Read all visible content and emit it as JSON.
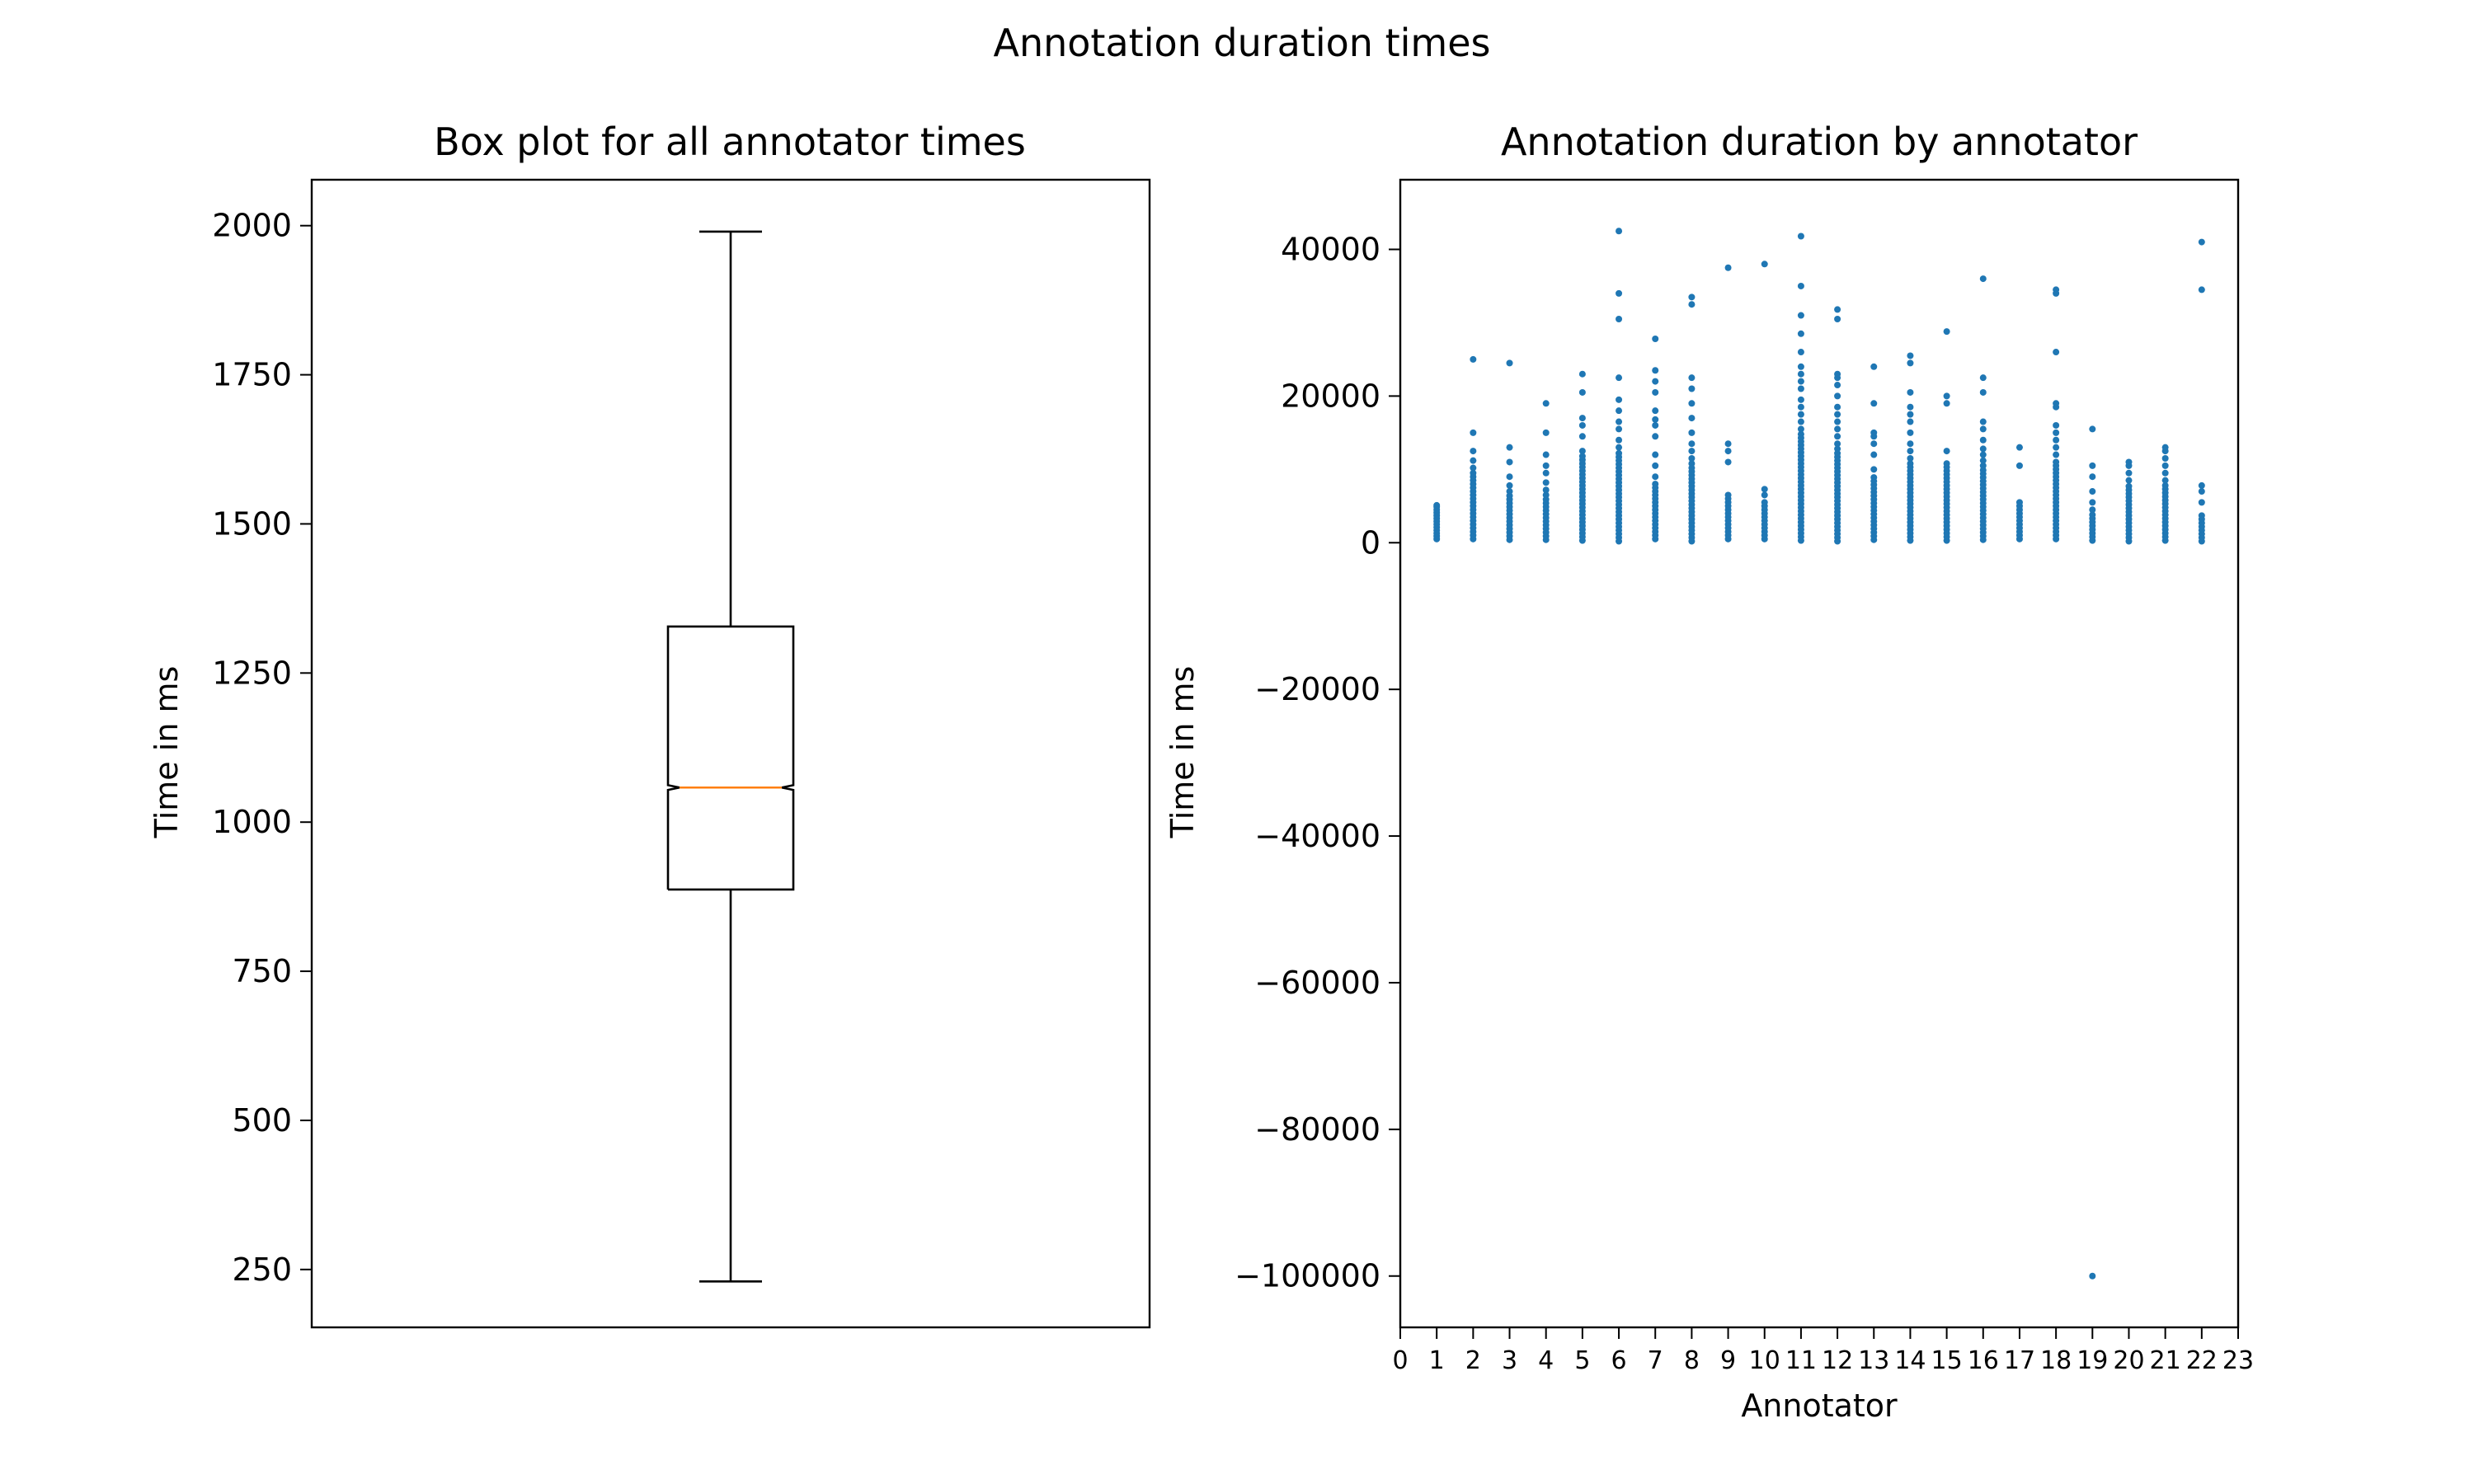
{
  "figure": {
    "suptitle": "Annotation duration times"
  },
  "colors": {
    "box": "#000000",
    "median": "#ff7f0e",
    "points": "#1f77b4"
  },
  "chart_data": [
    {
      "type": "box",
      "title": "Box plot for all annotator times",
      "xlabel": "",
      "ylabel": "Time in ms",
      "ylim": [
        153,
        2077
      ],
      "yticks": [
        250,
        500,
        750,
        1000,
        1250,
        1500,
        1750,
        2000
      ],
      "grid": false,
      "notched": true,
      "stats": {
        "whisker_low": 230,
        "q1": 887,
        "median": 1058,
        "q3": 1328,
        "whisker_high": 1990,
        "notch_low": 1054,
        "notch_high": 1062
      }
    },
    {
      "type": "scatter",
      "title": "Annotation duration by annotator",
      "xlabel": "Annotator",
      "ylabel": "Time in ms",
      "xlim": [
        0,
        23
      ],
      "ylim": [
        -107000,
        49500
      ],
      "xticks": [
        0,
        1,
        2,
        3,
        4,
        5,
        6,
        7,
        8,
        9,
        10,
        11,
        12,
        13,
        14,
        15,
        16,
        17,
        18,
        19,
        20,
        21,
        22,
        23
      ],
      "yticks": [
        -100000,
        -80000,
        -60000,
        -40000,
        -20000,
        0,
        20000,
        40000
      ],
      "grid": false,
      "series": [
        {
          "points": [
            {
              "x": 1,
              "y": [
                500,
                900,
                1300,
                1700,
                2100,
                2500,
                2900,
                3300,
                3700,
                4100,
                4500,
                4900,
                5100
              ]
            },
            {
              "x": 2,
              "y": [
                500,
                1000,
                1500,
                2000,
                2500,
                3000,
                3500,
                4000,
                4500,
                5000,
                5500,
                6000,
                6500,
                7000,
                7500,
                8000,
                8500,
                9000,
                9500,
                10200,
                11200,
                12500,
                15000,
                25000
              ]
            },
            {
              "x": 3,
              "y": [
                400,
                900,
                1400,
                1900,
                2400,
                2900,
                3400,
                3900,
                4400,
                4900,
                5400,
                5900,
                6400,
                7000,
                7800,
                9000,
                11000,
                13000,
                24500
              ]
            },
            {
              "x": 4,
              "y": [
                400,
                900,
                1400,
                1900,
                2400,
                2900,
                3400,
                3900,
                4400,
                4900,
                5400,
                5900,
                6500,
                7200,
                8200,
                9500,
                10500,
                12000,
                15000,
                19000
              ]
            },
            {
              "x": 5,
              "y": [
                300,
                800,
                1300,
                1800,
                2300,
                2800,
                3300,
                3800,
                4300,
                4800,
                5300,
                5800,
                6300,
                6800,
                7300,
                7800,
                8300,
                8800,
                9300,
                9800,
                10300,
                10800,
                11300,
                11800,
                12500,
                14500,
                16000,
                17000,
                20500,
                23000
              ]
            },
            {
              "x": 6,
              "y": [
                200,
                700,
                1200,
                1700,
                2200,
                2700,
                3200,
                3700,
                4200,
                4700,
                5200,
                5700,
                6200,
                6700,
                7200,
                7700,
                8200,
                8700,
                9200,
                9700,
                10200,
                10700,
                11200,
                11700,
                12200,
                13000,
                14000,
                15500,
                16500,
                18000,
                19500,
                22500,
                30500,
                34000,
                42500
              ]
            },
            {
              "x": 7,
              "y": [
                500,
                1000,
                1500,
                2000,
                2500,
                3000,
                3500,
                4000,
                4500,
                5000,
                5500,
                6000,
                6500,
                7000,
                7500,
                8000,
                9000,
                10500,
                12000,
                14500,
                16000,
                16800,
                18000,
                20500,
                22000,
                23500,
                27800
              ]
            },
            {
              "x": 8,
              "y": [
                200,
                700,
                1200,
                1700,
                2200,
                2700,
                3200,
                3700,
                4200,
                4700,
                5200,
                5700,
                6200,
                6700,
                7200,
                7700,
                8200,
                8700,
                9200,
                9700,
                10200,
                10800,
                11500,
                12500,
                13500,
                15000,
                17000,
                19000,
                21000,
                22500,
                32500,
                33500
              ]
            },
            {
              "x": 9,
              "y": [
                500,
                1000,
                1500,
                2000,
                2500,
                3000,
                3500,
                4000,
                4500,
                5000,
                5500,
                6000,
                6500,
                11000,
                12500,
                13500,
                37500
              ]
            },
            {
              "x": 10,
              "y": [
                500,
                1000,
                1500,
                2000,
                2500,
                3000,
                3500,
                4000,
                4500,
                5000,
                5500,
                6500,
                7300,
                38000
              ]
            },
            {
              "x": 11,
              "y": [
                300,
                800,
                1300,
                1800,
                2300,
                2800,
                3300,
                3800,
                4300,
                4800,
                5300,
                5800,
                6300,
                6800,
                7300,
                7800,
                8300,
                8800,
                9300,
                9800,
                10300,
                10800,
                11300,
                11800,
                12300,
                12800,
                13300,
                13800,
                14300,
                14800,
                15500,
                16500,
                17500,
                18500,
                19500,
                21000,
                22000,
                23000,
                24000,
                26000,
                28500,
                31000,
                35000,
                41800
              ]
            },
            {
              "x": 12,
              "y": [
                200,
                700,
                1200,
                1700,
                2200,
                2700,
                3200,
                3700,
                4200,
                4700,
                5200,
                5700,
                6200,
                6700,
                7200,
                7700,
                8200,
                8700,
                9200,
                9700,
                10200,
                10700,
                11200,
                11700,
                12200,
                12800,
                13500,
                14500,
                15500,
                16500,
                17500,
                18500,
                20000,
                21500,
                22500,
                23000,
                30500,
                31800
              ]
            },
            {
              "x": 13,
              "y": [
                400,
                900,
                1400,
                1900,
                2400,
                2900,
                3400,
                3900,
                4400,
                4900,
                5400,
                5900,
                6400,
                6900,
                7400,
                7900,
                8400,
                8900,
                10000,
                12000,
                13500,
                14500,
                15000,
                19000,
                24000
              ]
            },
            {
              "x": 14,
              "y": [
                300,
                800,
                1300,
                1800,
                2300,
                2800,
                3300,
                3800,
                4300,
                4800,
                5300,
                5800,
                6300,
                6800,
                7300,
                7800,
                8300,
                8800,
                9300,
                9800,
                10300,
                10800,
                11500,
                12500,
                13500,
                15000,
                16500,
                17500,
                18500,
                20500,
                24500,
                25500
              ]
            },
            {
              "x": 15,
              "y": [
                300,
                800,
                1300,
                1800,
                2300,
                2800,
                3300,
                3800,
                4300,
                4800,
                5300,
                5800,
                6300,
                6800,
                7300,
                7800,
                8300,
                8800,
                9300,
                9800,
                10300,
                10800,
                12500,
                19000,
                20000,
                28800
              ]
            },
            {
              "x": 16,
              "y": [
                400,
                900,
                1400,
                1900,
                2400,
                2900,
                3400,
                3900,
                4400,
                4900,
                5400,
                5900,
                6400,
                6900,
                7400,
                7900,
                8400,
                8900,
                9400,
                9900,
                10500,
                11200,
                12000,
                12800,
                14000,
                15500,
                16500,
                20500,
                22500,
                36000
              ]
            },
            {
              "x": 17,
              "y": [
                500,
                1000,
                1500,
                2000,
                2500,
                3000,
                3500,
                4000,
                4500,
                5000,
                5500,
                10500,
                13000
              ]
            },
            {
              "x": 18,
              "y": [
                500,
                1000,
                1500,
                2000,
                2500,
                3000,
                3500,
                4000,
                4500,
                5000,
                5500,
                6000,
                6500,
                7000,
                7500,
                8000,
                8500,
                9000,
                9500,
                10000,
                10500,
                11000,
                12000,
                13000,
                14000,
                15000,
                16000,
                18500,
                19000,
                26000,
                34000,
                34500
              ]
            },
            {
              "x": 19,
              "y": [
                300,
                800,
                1300,
                1800,
                2300,
                2800,
                3300,
                3800,
                4500,
                5500,
                7000,
                9000,
                10500,
                15500,
                -100000
              ]
            },
            {
              "x": 20,
              "y": [
                200,
                700,
                1200,
                1700,
                2200,
                2700,
                3200,
                3700,
                4200,
                4700,
                5200,
                5700,
                6200,
                6700,
                7200,
                7700,
                8500,
                9500,
                10500,
                11000
              ]
            },
            {
              "x": 21,
              "y": [
                300,
                800,
                1300,
                1800,
                2300,
                2800,
                3300,
                3800,
                4300,
                4800,
                5300,
                5800,
                6300,
                6800,
                7300,
                7800,
                8500,
                9500,
                10500,
                11500,
                12500,
                13000
              ]
            },
            {
              "x": 22,
              "y": [
                200,
                700,
                1200,
                1700,
                2200,
                2700,
                3200,
                3700,
                5500,
                7000,
                7800,
                34500,
                41000
              ]
            }
          ]
        }
      ]
    }
  ]
}
